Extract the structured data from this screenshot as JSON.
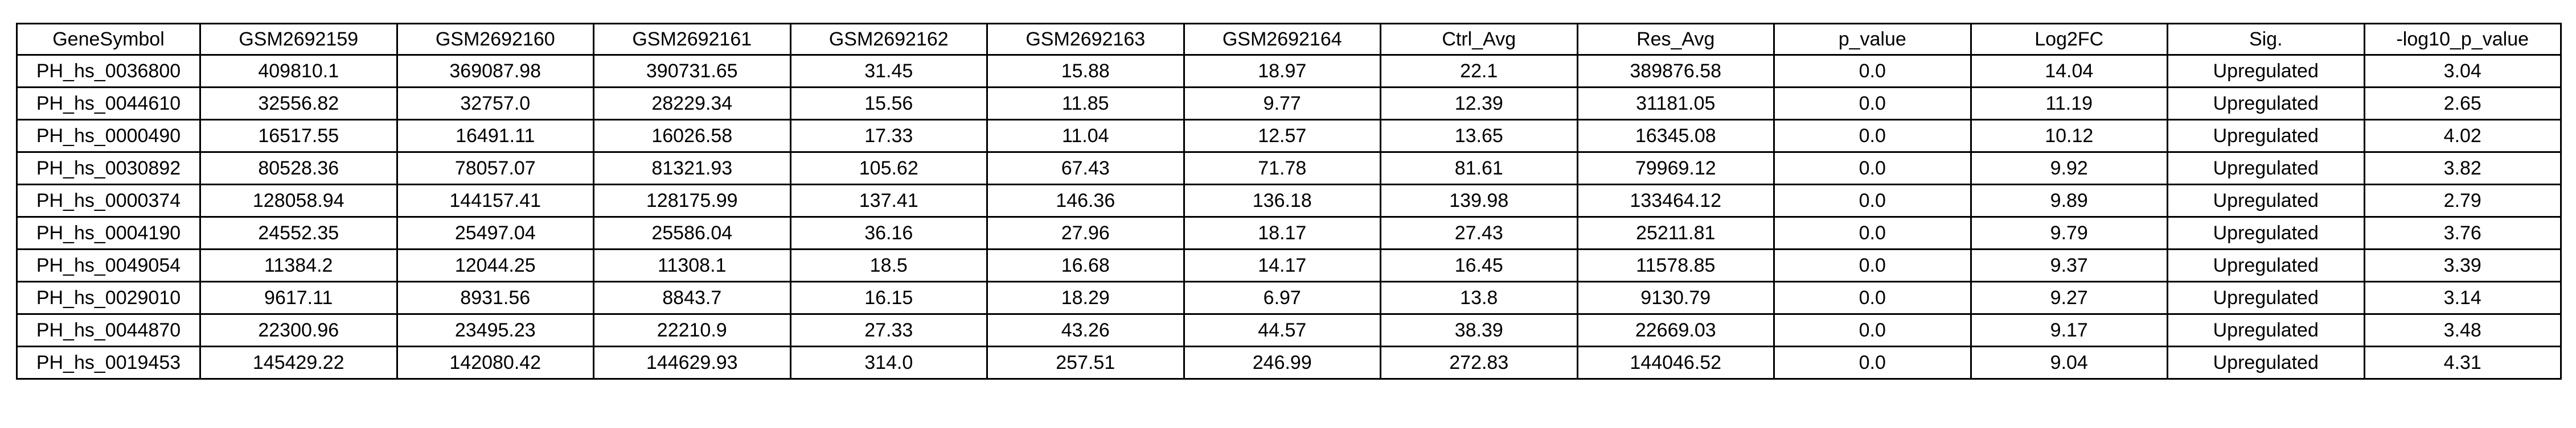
{
  "table": {
    "headers": [
      "GeneSymbol",
      "GSM2692159",
      "GSM2692160",
      "GSM2692161",
      "GSM2692162",
      "GSM2692163",
      "GSM2692164",
      "Ctrl_Avg",
      "Res_Avg",
      "p_value",
      "Log2FC",
      "Sig.",
      "-log10_p_value"
    ],
    "rows": [
      [
        "PH_hs_0036800",
        "409810.1",
        "369087.98",
        "390731.65",
        "31.45",
        "15.88",
        "18.97",
        "22.1",
        "389876.58",
        "0.0",
        "14.04",
        "Upregulated",
        "3.04"
      ],
      [
        "PH_hs_0044610",
        "32556.82",
        "32757.0",
        "28229.34",
        "15.56",
        "11.85",
        "9.77",
        "12.39",
        "31181.05",
        "0.0",
        "11.19",
        "Upregulated",
        "2.65"
      ],
      [
        "PH_hs_0000490",
        "16517.55",
        "16491.11",
        "16026.58",
        "17.33",
        "11.04",
        "12.57",
        "13.65",
        "16345.08",
        "0.0",
        "10.12",
        "Upregulated",
        "4.02"
      ],
      [
        "PH_hs_0030892",
        "80528.36",
        "78057.07",
        "81321.93",
        "105.62",
        "67.43",
        "71.78",
        "81.61",
        "79969.12",
        "0.0",
        "9.92",
        "Upregulated",
        "3.82"
      ],
      [
        "PH_hs_0000374",
        "128058.94",
        "144157.41",
        "128175.99",
        "137.41",
        "146.36",
        "136.18",
        "139.98",
        "133464.12",
        "0.0",
        "9.89",
        "Upregulated",
        "2.79"
      ],
      [
        "PH_hs_0004190",
        "24552.35",
        "25497.04",
        "25586.04",
        "36.16",
        "27.96",
        "18.17",
        "27.43",
        "25211.81",
        "0.0",
        "9.79",
        "Upregulated",
        "3.76"
      ],
      [
        "PH_hs_0049054",
        "11384.2",
        "12044.25",
        "11308.1",
        "18.5",
        "16.68",
        "14.17",
        "16.45",
        "11578.85",
        "0.0",
        "9.37",
        "Upregulated",
        "3.39"
      ],
      [
        "PH_hs_0029010",
        "9617.11",
        "8931.56",
        "8843.7",
        "16.15",
        "18.29",
        "6.97",
        "13.8",
        "9130.79",
        "0.0",
        "9.27",
        "Upregulated",
        "3.14"
      ],
      [
        "PH_hs_0044870",
        "22300.96",
        "23495.23",
        "22210.9",
        "27.33",
        "43.26",
        "44.57",
        "38.39",
        "22669.03",
        "0.0",
        "9.17",
        "Upregulated",
        "3.48"
      ],
      [
        "PH_hs_0019453",
        "145429.22",
        "142080.42",
        "144629.93",
        "314.0",
        "257.51",
        "246.99",
        "272.83",
        "144046.52",
        "0.0",
        "9.04",
        "Upregulated",
        "4.31"
      ]
    ]
  }
}
